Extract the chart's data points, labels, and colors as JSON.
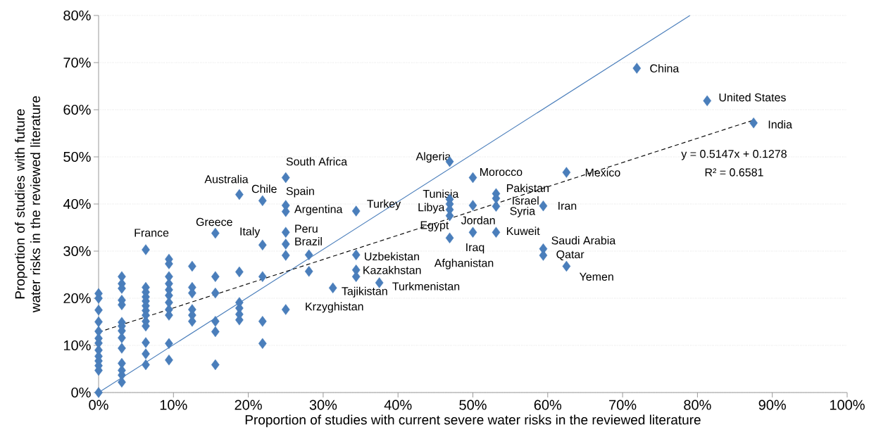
{
  "chart_data": {
    "type": "scatter",
    "xlabel": "Proportion of studies with current severe water risks in the reviewed literature",
    "ylabel": "Proportion of studies with future water risks in the reviewed literature",
    "xlim": [
      0,
      100
    ],
    "ylim": [
      0,
      80
    ],
    "xticks": [
      {
        "value": 0,
        "label": "0%"
      },
      {
        "value": 10,
        "label": "10%"
      },
      {
        "value": 20,
        "label": "20%"
      },
      {
        "value": 30,
        "label": "30%"
      },
      {
        "value": 40,
        "label": "40%"
      },
      {
        "value": 50,
        "label": "50%"
      },
      {
        "value": 60,
        "label": "60%"
      },
      {
        "value": 70,
        "label": "70%"
      },
      {
        "value": 80,
        "label": "80%"
      },
      {
        "value": 90,
        "label": "90%"
      },
      {
        "value": 100,
        "label": "100%"
      }
    ],
    "yticks": [
      {
        "value": 0,
        "label": "0%"
      },
      {
        "value": 10,
        "label": "10%"
      },
      {
        "value": 20,
        "label": "20%"
      },
      {
        "value": 30,
        "label": "30%"
      },
      {
        "value": 40,
        "label": "40%"
      },
      {
        "value": 50,
        "label": "50%"
      },
      {
        "value": 60,
        "label": "60%"
      },
      {
        "value": 70,
        "label": "70%"
      },
      {
        "value": 80,
        "label": "80%"
      }
    ],
    "grid": "y",
    "marker": "diamond",
    "series": [
      {
        "color": "#4a7ebb",
        "x": [
          0,
          0,
          0,
          0,
          0,
          0,
          0,
          0,
          0,
          0,
          0,
          0,
          0,
          3.1,
          3.1,
          3.1,
          3.1,
          3.1,
          3.1,
          3.1,
          3.1,
          3.1,
          3.1,
          3.1,
          3.1,
          3.1,
          3.1,
          6.3,
          6.3,
          6.3,
          6.3,
          6.3,
          6.3,
          6.3,
          6.3,
          6.3,
          6.3,
          6.3,
          6.3,
          6.3,
          9.4,
          9.4,
          9.4,
          9.4,
          9.4,
          9.4,
          9.4,
          9.4,
          9.4,
          9.4,
          9.4,
          12.5,
          12.5,
          12.5,
          12.5,
          12.5,
          12.5,
          15.6,
          15.6,
          15.6,
          15.6,
          15.6,
          15.6,
          18.8,
          18.8,
          18.8,
          18.8,
          18.8,
          18.8,
          21.9,
          21.9,
          21.9,
          21.9,
          21.9,
          25,
          25,
          25,
          25,
          25,
          25,
          25,
          28.1,
          28.1,
          31.3,
          34.4,
          34.4,
          34.4,
          34.4,
          37.5,
          46.9,
          46.9,
          46.9,
          46.9,
          46.9,
          46.9,
          50,
          50,
          50,
          53.1,
          53.1,
          53.1,
          53.1,
          59.4,
          59.4,
          59.4,
          62.5,
          62.5,
          71.9,
          81.3,
          87.5
        ],
        "values": [
          21,
          20,
          17.5,
          15,
          13,
          11.5,
          10.5,
          9,
          7.7,
          6.7,
          5.7,
          4.7,
          0,
          24.6,
          23.1,
          22.1,
          19.6,
          18.6,
          14.9,
          14.1,
          13.1,
          11.6,
          9.4,
          6.2,
          4.7,
          3.7,
          2.2,
          30.3,
          22.3,
          21.3,
          20.3,
          19.4,
          18.4,
          17.4,
          16.4,
          15.1,
          14.1,
          10.6,
          8.2,
          5.9,
          28.3,
          27.3,
          24.6,
          23.1,
          21.8,
          20.6,
          19.1,
          17.6,
          16.4,
          10.4,
          6.9,
          26.8,
          22.3,
          21.1,
          17.6,
          16.4,
          15.1,
          33.8,
          24.6,
          21.1,
          15.1,
          12.9,
          5.9,
          42,
          25.6,
          19.1,
          17.9,
          16.6,
          15.4,
          40.7,
          31.3,
          24.6,
          15.1,
          10.4,
          45.6,
          39.7,
          38.4,
          34,
          31.5,
          29.1,
          17.6,
          29.2,
          25.7,
          22.2,
          38.5,
          29.2,
          26,
          24.6,
          23.3,
          49,
          41,
          40,
          38.8,
          37.5,
          32.8,
          45.6,
          39.7,
          34,
          42.2,
          41.2,
          39.5,
          34,
          39.6,
          30.5,
          29.1,
          46.7,
          26.8,
          68.8,
          61.9,
          57.2
        ]
      },
      {
        "type": "line",
        "color": "#4a7ebb",
        "marker": "none",
        "line_style": "solid",
        "x": [
          0,
          79
        ],
        "values": [
          0,
          80
        ]
      },
      {
        "type": "line",
        "color": "#000000",
        "marker": "none",
        "line_style": "dashed",
        "x": [
          0,
          87.5
        ],
        "values": [
          12.8,
          57.8
        ]
      }
    ],
    "annotations": [
      {
        "text": "China",
        "x": 71.9,
        "y": 68.8
      },
      {
        "text": "United States",
        "x": 81.3,
        "y": 61.9
      },
      {
        "text": "India",
        "x": 87.5,
        "y": 57.2
      },
      {
        "text": "South Africa",
        "x": 25,
        "y": 45.6
      },
      {
        "text": "Australia",
        "x": 18.8,
        "y": 42
      },
      {
        "text": "Chile",
        "x": 21.9,
        "y": 40.7
      },
      {
        "text": "Spain",
        "x": 25,
        "y": 39.7
      },
      {
        "text": "Argentina",
        "x": 25,
        "y": 38.4
      },
      {
        "text": "Peru",
        "x": 25,
        "y": 34
      },
      {
        "text": "Brazil",
        "x": 25,
        "y": 31.5
      },
      {
        "text": "Krzyghistan",
        "x": 25,
        "y": 17.6
      },
      {
        "text": "Greece",
        "x": 15.6,
        "y": 33.8
      },
      {
        "text": "France",
        "x": 6.3,
        "y": 30.3
      },
      {
        "text": "Italy",
        "x": 21.9,
        "y": 31.3
      },
      {
        "text": "Turkey",
        "x": 34.4,
        "y": 38.5
      },
      {
        "text": "Uzbekistan",
        "x": 34.4,
        "y": 29.2
      },
      {
        "text": "Kazakhstan",
        "x": 34.4,
        "y": 26
      },
      {
        "text": "Tajikistan",
        "x": 31.3,
        "y": 22.2
      },
      {
        "text": "Turkmenistan",
        "x": 37.5,
        "y": 23.3
      },
      {
        "text": "Algeria",
        "x": 46.9,
        "y": 49
      },
      {
        "text": "Morocco",
        "x": 50,
        "y": 45.6
      },
      {
        "text": "Tunisia",
        "x": 46.9,
        "y": 41
      },
      {
        "text": "Libya",
        "x": 46.9,
        "y": 40
      },
      {
        "text": "Egypt",
        "x": 46.9,
        "y": 37.5
      },
      {
        "text": "Jordan",
        "x": 50,
        "y": 39.7
      },
      {
        "text": "Iraq",
        "x": 50,
        "y": 34
      },
      {
        "text": "Afghanistan",
        "x": 46.9,
        "y": 32.8
      },
      {
        "text": "Pakistan",
        "x": 53.1,
        "y": 42.2
      },
      {
        "text": "Israel",
        "x": 53.1,
        "y": 41.2
      },
      {
        "text": "Syria",
        "x": 53.1,
        "y": 39.5
      },
      {
        "text": "Kuweit",
        "x": 53.1,
        "y": 34
      },
      {
        "text": "Iran",
        "x": 59.4,
        "y": 39.6
      },
      {
        "text": "Mexico",
        "x": 62.5,
        "y": 46.7
      },
      {
        "text": "Saudi Arabia",
        "x": 59.4,
        "y": 30.5
      },
      {
        "text": "Qatar",
        "x": 59.4,
        "y": 29.1
      },
      {
        "text": "Yemen",
        "x": 62.5,
        "y": 26.8
      },
      "y = 0.5147x + 0.1278",
      "R² = 0.6581"
    ]
  }
}
